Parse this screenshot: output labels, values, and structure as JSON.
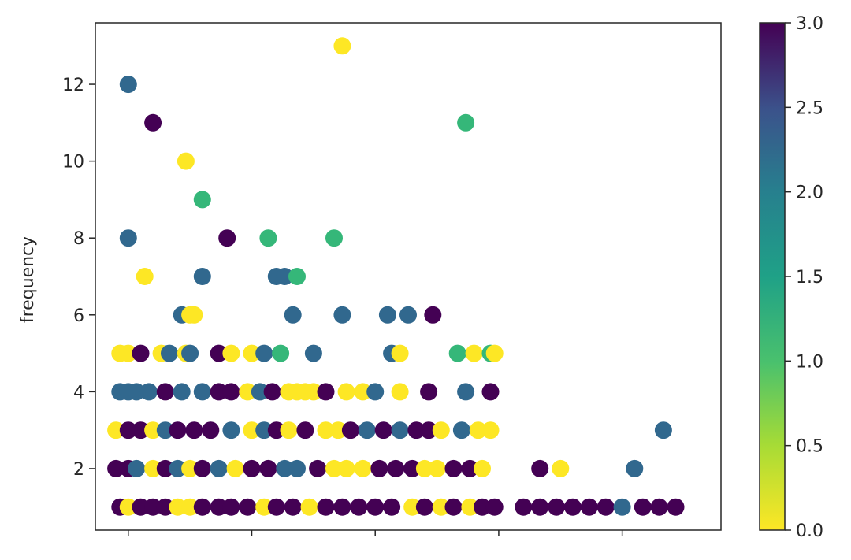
{
  "chart_data": {
    "type": "scatter",
    "title": "",
    "xlabel": "",
    "ylabel": "frequency",
    "ylim": [
      0.4,
      13.6
    ],
    "xlim": [
      -0.8,
      14.4
    ],
    "yticks": [
      2,
      4,
      6,
      8,
      10,
      12
    ],
    "xticks": [
      0,
      3,
      6,
      9,
      12
    ],
    "xtick_labels_visible": false,
    "grid": false,
    "colormap": "viridis_r",
    "colorbar": {
      "range": [
        0.0,
        3.0
      ],
      "ticks": [
        "0.0",
        "0.5",
        "1.0",
        "1.5",
        "2.0",
        "2.5",
        "3.0"
      ]
    },
    "colors": {
      "0": "#fde725",
      "1": "#35b779",
      "2": "#31688e",
      "3": "#440154"
    },
    "points": [
      [
        5.2,
        13,
        0
      ],
      [
        0,
        12,
        2
      ],
      [
        0.6,
        11,
        3
      ],
      [
        8.2,
        11,
        1
      ],
      [
        1.4,
        10,
        0
      ],
      [
        1.8,
        9,
        1
      ],
      [
        0,
        8,
        2
      ],
      [
        2.4,
        8,
        3
      ],
      [
        3.4,
        8,
        1
      ],
      [
        5.0,
        8,
        1
      ],
      [
        0.4,
        7,
        0
      ],
      [
        1.8,
        7,
        2
      ],
      [
        3.6,
        7,
        2
      ],
      [
        3.8,
        7,
        2
      ],
      [
        4.1,
        7,
        1
      ],
      [
        1.3,
        6,
        2
      ],
      [
        1.5,
        6,
        0
      ],
      [
        1.6,
        6,
        0
      ],
      [
        4.0,
        6,
        2
      ],
      [
        5.2,
        6,
        2
      ],
      [
        6.3,
        6,
        2
      ],
      [
        6.8,
        6,
        2
      ],
      [
        7.4,
        6,
        3
      ],
      [
        -0.2,
        5,
        0
      ],
      [
        0,
        5,
        0
      ],
      [
        0.3,
        5,
        3
      ],
      [
        0.8,
        5,
        0
      ],
      [
        1.0,
        5,
        2
      ],
      [
        1.4,
        5,
        0
      ],
      [
        1.5,
        5,
        2
      ],
      [
        2.2,
        5,
        3
      ],
      [
        2.5,
        5,
        0
      ],
      [
        3.0,
        5,
        0
      ],
      [
        3.3,
        5,
        2
      ],
      [
        3.7,
        5,
        1
      ],
      [
        4.5,
        5,
        2
      ],
      [
        6.4,
        5,
        2
      ],
      [
        6.6,
        5,
        0
      ],
      [
        8.0,
        5,
        1
      ],
      [
        8.4,
        5,
        0
      ],
      [
        8.8,
        5,
        1
      ],
      [
        8.9,
        5,
        0
      ],
      [
        -0.2,
        4,
        2
      ],
      [
        0.0,
        4,
        2
      ],
      [
        0.2,
        4,
        2
      ],
      [
        0.5,
        4,
        2
      ],
      [
        0.9,
        4,
        3
      ],
      [
        1.3,
        4,
        2
      ],
      [
        1.8,
        4,
        2
      ],
      [
        2.2,
        4,
        3
      ],
      [
        2.5,
        4,
        3
      ],
      [
        2.9,
        4,
        0
      ],
      [
        3.2,
        4,
        2
      ],
      [
        3.5,
        4,
        3
      ],
      [
        3.9,
        4,
        0
      ],
      [
        4.1,
        4,
        0
      ],
      [
        4.3,
        4,
        0
      ],
      [
        4.5,
        4,
        0
      ],
      [
        4.8,
        4,
        3
      ],
      [
        5.3,
        4,
        0
      ],
      [
        5.7,
        4,
        0
      ],
      [
        6.0,
        4,
        2
      ],
      [
        6.6,
        4,
        0
      ],
      [
        7.3,
        4,
        3
      ],
      [
        8.2,
        4,
        2
      ],
      [
        8.8,
        4,
        3
      ],
      [
        -0.3,
        3,
        0
      ],
      [
        0.0,
        3,
        3
      ],
      [
        0.3,
        3,
        3
      ],
      [
        0.6,
        3,
        0
      ],
      [
        0.9,
        3,
        2
      ],
      [
        1.2,
        3,
        3
      ],
      [
        1.6,
        3,
        3
      ],
      [
        2.0,
        3,
        3
      ],
      [
        2.5,
        3,
        2
      ],
      [
        3.0,
        3,
        0
      ],
      [
        3.3,
        3,
        2
      ],
      [
        3.6,
        3,
        3
      ],
      [
        3.9,
        3,
        0
      ],
      [
        4.3,
        3,
        3
      ],
      [
        4.8,
        3,
        0
      ],
      [
        5.1,
        3,
        0
      ],
      [
        5.4,
        3,
        3
      ],
      [
        5.8,
        3,
        2
      ],
      [
        6.2,
        3,
        3
      ],
      [
        6.6,
        3,
        2
      ],
      [
        7.0,
        3,
        3
      ],
      [
        7.3,
        3,
        3
      ],
      [
        7.6,
        3,
        0
      ],
      [
        8.1,
        3,
        2
      ],
      [
        8.5,
        3,
        0
      ],
      [
        8.8,
        3,
        0
      ],
      [
        13.0,
        3,
        2
      ],
      [
        -0.3,
        2,
        3
      ],
      [
        0.0,
        2,
        3
      ],
      [
        0.2,
        2,
        2
      ],
      [
        0.6,
        2,
        0
      ],
      [
        0.9,
        2,
        3
      ],
      [
        1.2,
        2,
        2
      ],
      [
        1.5,
        2,
        0
      ],
      [
        1.8,
        2,
        3
      ],
      [
        2.2,
        2,
        2
      ],
      [
        2.6,
        2,
        0
      ],
      [
        3.0,
        2,
        3
      ],
      [
        3.4,
        2,
        3
      ],
      [
        3.8,
        2,
        2
      ],
      [
        4.1,
        2,
        2
      ],
      [
        4.6,
        2,
        3
      ],
      [
        5.0,
        2,
        0
      ],
      [
        5.3,
        2,
        0
      ],
      [
        5.7,
        2,
        0
      ],
      [
        6.1,
        2,
        3
      ],
      [
        6.5,
        2,
        3
      ],
      [
        6.9,
        2,
        3
      ],
      [
        7.2,
        2,
        0
      ],
      [
        7.5,
        2,
        0
      ],
      [
        7.9,
        2,
        3
      ],
      [
        8.3,
        2,
        3
      ],
      [
        8.6,
        2,
        0
      ],
      [
        10.0,
        2,
        3
      ],
      [
        10.5,
        2,
        0
      ],
      [
        12.3,
        2,
        2
      ],
      [
        -0.2,
        1,
        3
      ],
      [
        0.0,
        1,
        0
      ],
      [
        0.3,
        1,
        3
      ],
      [
        0.6,
        1,
        3
      ],
      [
        0.9,
        1,
        3
      ],
      [
        1.2,
        1,
        0
      ],
      [
        1.5,
        1,
        0
      ],
      [
        1.8,
        1,
        3
      ],
      [
        2.2,
        1,
        3
      ],
      [
        2.5,
        1,
        3
      ],
      [
        2.9,
        1,
        3
      ],
      [
        3.3,
        1,
        0
      ],
      [
        3.6,
        1,
        3
      ],
      [
        4.0,
        1,
        3
      ],
      [
        4.4,
        1,
        0
      ],
      [
        4.8,
        1,
        3
      ],
      [
        5.2,
        1,
        3
      ],
      [
        5.6,
        1,
        3
      ],
      [
        6.0,
        1,
        3
      ],
      [
        6.4,
        1,
        3
      ],
      [
        6.9,
        1,
        0
      ],
      [
        7.2,
        1,
        3
      ],
      [
        7.6,
        1,
        0
      ],
      [
        7.9,
        1,
        3
      ],
      [
        8.3,
        1,
        0
      ],
      [
        8.6,
        1,
        3
      ],
      [
        8.9,
        1,
        3
      ],
      [
        9.6,
        1,
        3
      ],
      [
        10.0,
        1,
        3
      ],
      [
        10.4,
        1,
        3
      ],
      [
        10.8,
        1,
        3
      ],
      [
        11.2,
        1,
        3
      ],
      [
        11.6,
        1,
        3
      ],
      [
        12.0,
        1,
        2
      ],
      [
        12.5,
        1,
        3
      ],
      [
        12.9,
        1,
        3
      ],
      [
        13.3,
        1,
        3
      ]
    ]
  }
}
